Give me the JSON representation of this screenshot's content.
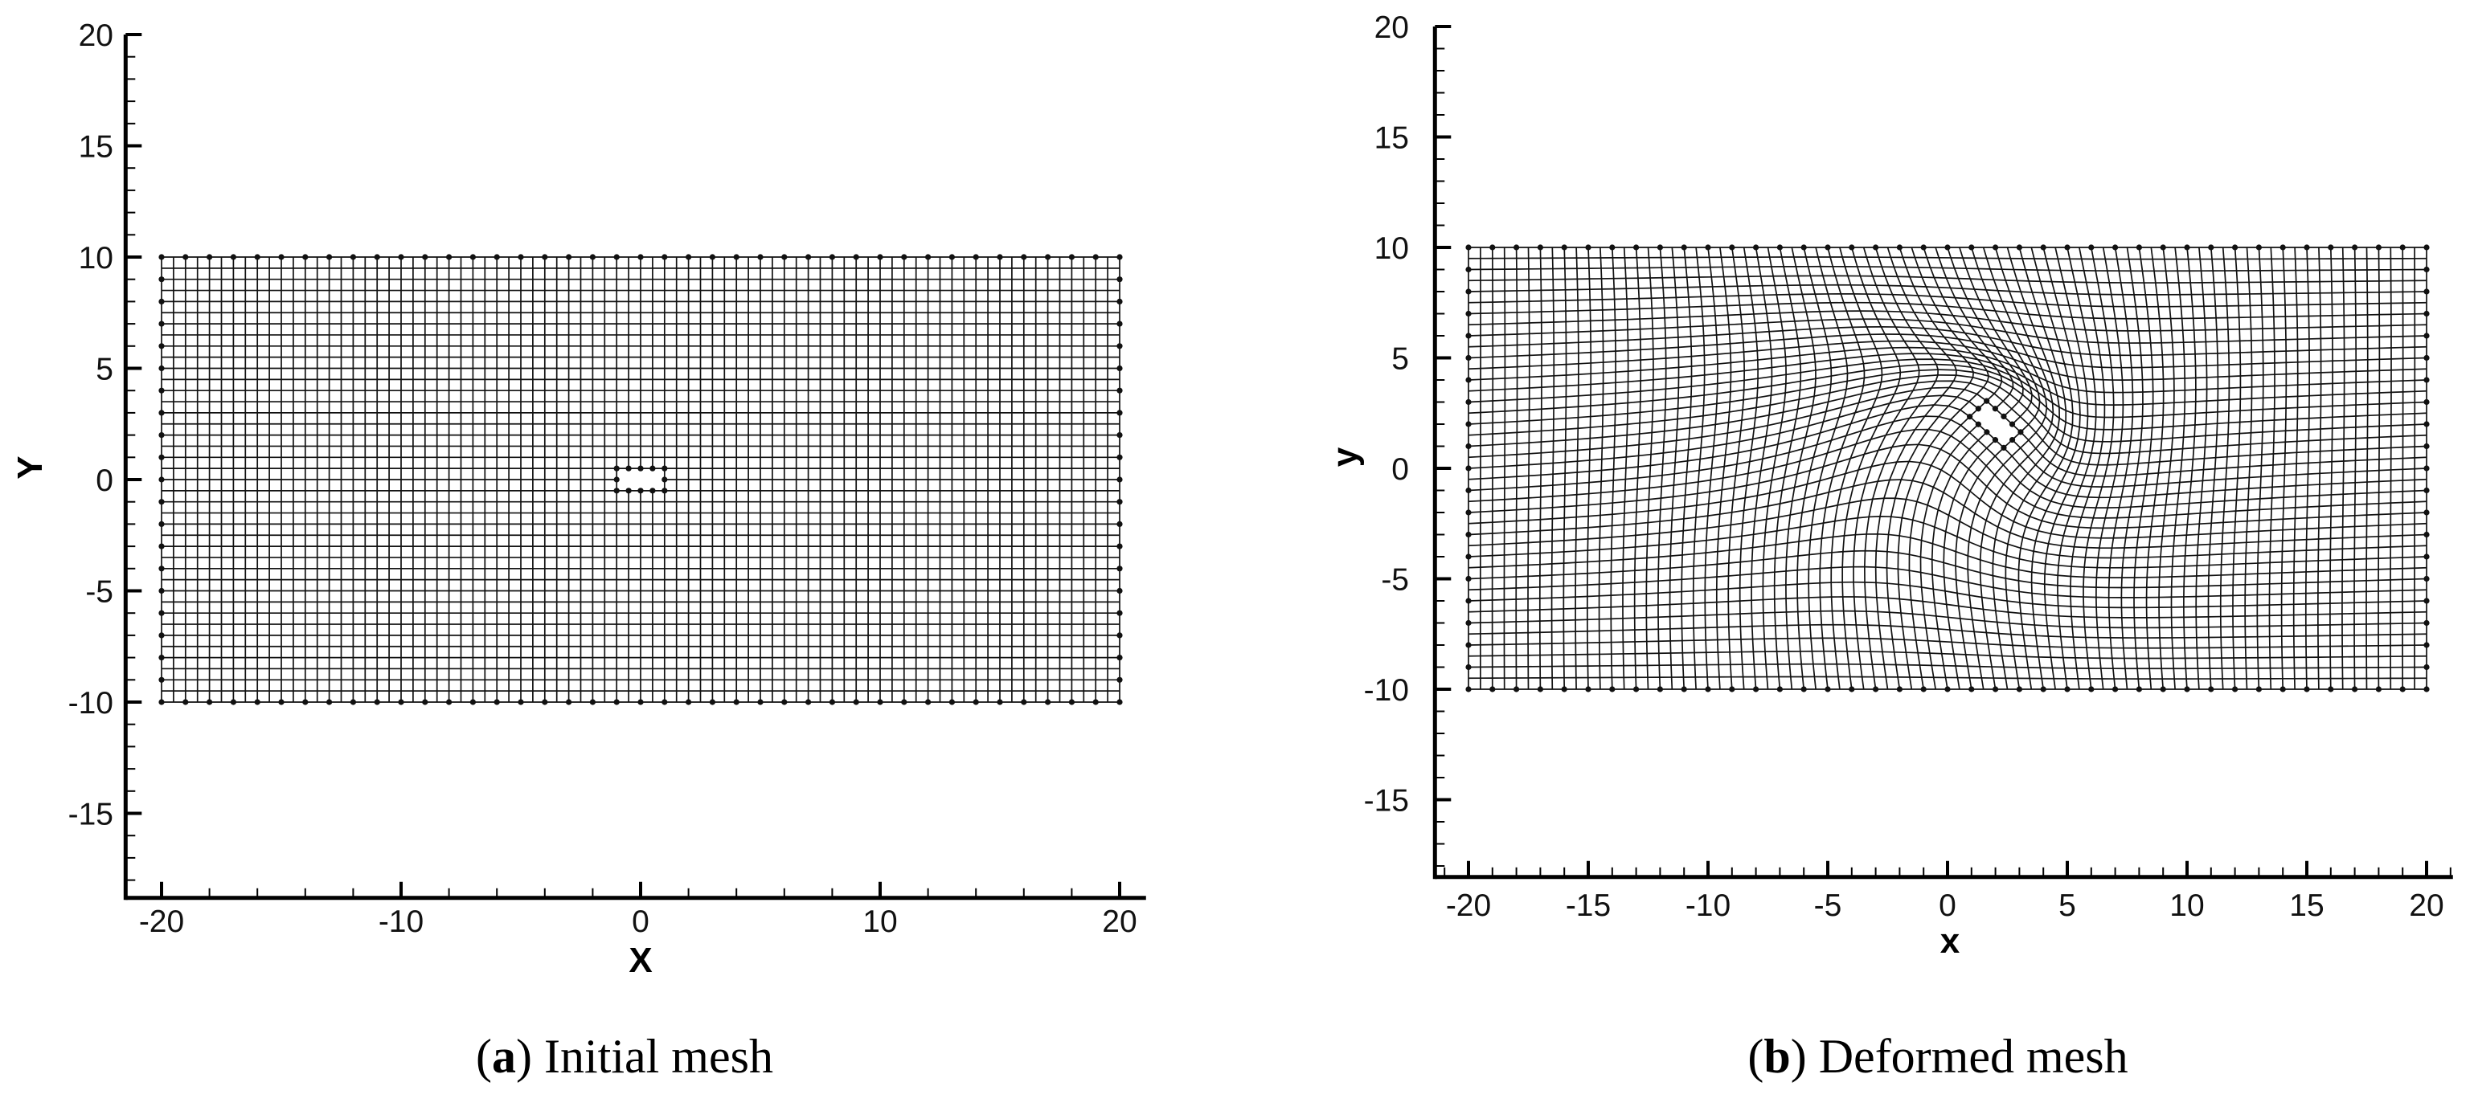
{
  "chart_data": [
    {
      "type": "line",
      "title": "",
      "xlabel": "X",
      "ylabel": "Y",
      "xlim": [
        -21.5,
        21.1
      ],
      "ylim": [
        -18.8,
        20
      ],
      "x_tick_labels": [
        "-20",
        "-10",
        "0",
        "10",
        "20"
      ],
      "x_minor_step": 2,
      "y_tick_labels": [
        "20",
        "15",
        "10",
        "5",
        "0",
        "-5",
        "-10",
        "-15"
      ],
      "y_minor_step": 1,
      "grid": false,
      "mesh": {
        "domain_x": [
          -20,
          20
        ],
        "domain_y": [
          -10,
          10
        ],
        "cell_size": 0.5,
        "boundary_marker_spacing": 1,
        "hole": {
          "center": [
            0,
            0
          ],
          "width": 2,
          "height": 1,
          "rotation_deg": 0
        },
        "deformed": false
      },
      "caption": {
        "open": "(",
        "label": "a",
        "text": ") Initial mesh"
      }
    },
    {
      "type": "line",
      "title": "",
      "xlabel": "x",
      "ylabel": "y",
      "xlim": [
        -21.4,
        21.1
      ],
      "ylim": [
        -18.5,
        20
      ],
      "x_tick_labels": [
        "-20",
        "-15",
        "-10",
        "-5",
        "0",
        "5",
        "10",
        "15",
        "20"
      ],
      "x_minor_step": 1,
      "y_tick_labels": [
        "20",
        "15",
        "10",
        "5",
        "0",
        "-5",
        "-10",
        "-15"
      ],
      "y_minor_step": 1,
      "grid": false,
      "mesh": {
        "domain_x": [
          -20,
          20
        ],
        "domain_y": [
          -10,
          10
        ],
        "cell_size": 0.5,
        "boundary_marker_spacing": 1,
        "hole": {
          "center": [
            2,
            2
          ],
          "width": 2,
          "height": 1,
          "rotation_deg": -45
        },
        "deformed": true
      },
      "caption": {
        "open": "(",
        "label": "b",
        "text": ") Deformed mesh"
      }
    }
  ],
  "colors": {
    "mesh": "#111111",
    "axis": "#000000",
    "background": "#ffffff"
  }
}
